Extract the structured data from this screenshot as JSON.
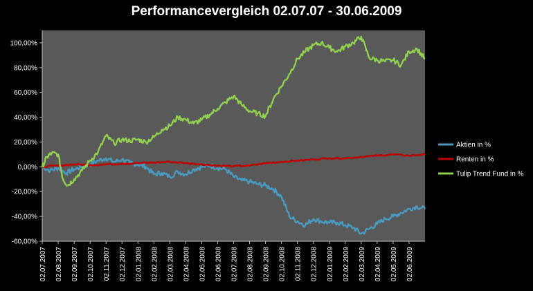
{
  "chart_data": {
    "type": "line",
    "title": "Performancevergleich  02.07.07 - 30.06.2009",
    "y_ticks": [
      "-60,00%",
      "-40,00%",
      "-20,00%",
      "0,00%",
      "20,00%",
      "40,00%",
      "60,00%",
      "80,00%",
      "100,00%"
    ],
    "ylim": [
      -60,
      110
    ],
    "x_ticks": [
      "02.07.2007",
      "02.08.2007",
      "02.09.2007",
      "02.10.2007",
      "02.11.2007",
      "02.12.2007",
      "02.01.2008",
      "02.02.2008",
      "02.03.2008",
      "02.04.2008",
      "02.05.2008",
      "02.06.2008",
      "02.07.2008",
      "02.08.2008",
      "02.09.2008",
      "02.10.2008",
      "02.11.2008",
      "02.12.2008",
      "02.01.2009",
      "02.02.2009",
      "02.03.2009",
      "02.04.2009",
      "02.05.2009",
      "02.06.2009"
    ],
    "x_range_months": [
      0,
      24
    ],
    "grid": false,
    "legend_position": "right",
    "plot_background": "#595959",
    "series": [
      {
        "name": "Aktien in %",
        "color": "#4a9bc0",
        "x": [
          0,
          0.5,
          1,
          1.5,
          2,
          2.5,
          3,
          3.5,
          4,
          4.5,
          5,
          5.5,
          6,
          6.5,
          7,
          7.5,
          8,
          8.5,
          9,
          9.5,
          10,
          10.5,
          11,
          11.5,
          12,
          12.5,
          13,
          13.5,
          14,
          14.5,
          15,
          15.5,
          16,
          16.5,
          17,
          17.5,
          18,
          18.5,
          19,
          19.5,
          20,
          20.5,
          21,
          21.5,
          22,
          22.5,
          23,
          23.5,
          24
        ],
        "y": [
          0,
          -3,
          -1,
          -5,
          -2,
          0,
          2,
          5,
          7,
          4,
          6,
          3,
          2,
          0,
          -6,
          -5,
          -8,
          -4,
          -6,
          -2,
          0,
          1,
          -1,
          -2,
          -8,
          -11,
          -12,
          -14,
          -15,
          -18,
          -24,
          -40,
          -44,
          -47,
          -42,
          -44,
          -45,
          -45,
          -47,
          -49,
          -54,
          -50,
          -46,
          -42,
          -40,
          -37,
          -34,
          -32,
          -34
        ]
      },
      {
        "name": "Renten in %",
        "color": "#c00000",
        "x": [
          0,
          1,
          2,
          3,
          4,
          5,
          6,
          7,
          8,
          9,
          10,
          11,
          12,
          13,
          14,
          15,
          16,
          17,
          18,
          19,
          20,
          21,
          22,
          23,
          24
        ],
        "y": [
          0,
          1,
          2,
          1.5,
          2,
          2.5,
          3,
          3.5,
          4,
          3,
          2,
          1,
          0.5,
          1,
          3,
          4,
          5,
          6,
          7,
          7,
          8,
          9,
          10,
          9,
          10
        ]
      },
      {
        "name": "Tulip Trend Fund in %",
        "color": "#92d050",
        "x": [
          0,
          0.3,
          0.6,
          1,
          1.3,
          1.6,
          2,
          2.5,
          3,
          3.5,
          4,
          4.5,
          5,
          5.5,
          6,
          6.5,
          7,
          7.5,
          8,
          8.5,
          9,
          9.5,
          10,
          10.5,
          11,
          11.5,
          12,
          12.5,
          13,
          13.5,
          14,
          14.5,
          15,
          15.5,
          16,
          16.5,
          17,
          17.5,
          18,
          18.5,
          19,
          19.5,
          20,
          20.5,
          21,
          21.5,
          22,
          22.5,
          23,
          23.5,
          24
        ],
        "y": [
          0,
          8,
          11,
          10,
          -10,
          -15,
          -10,
          -3,
          5,
          12,
          25,
          19,
          22,
          21,
          22,
          20,
          24,
          30,
          33,
          40,
          38,
          35,
          38,
          42,
          47,
          52,
          57,
          50,
          45,
          43,
          41,
          55,
          65,
          75,
          87,
          93,
          98,
          100,
          96,
          93,
          97,
          100,
          105,
          88,
          86,
          85,
          86,
          82,
          93,
          95,
          87
        ]
      }
    ]
  }
}
